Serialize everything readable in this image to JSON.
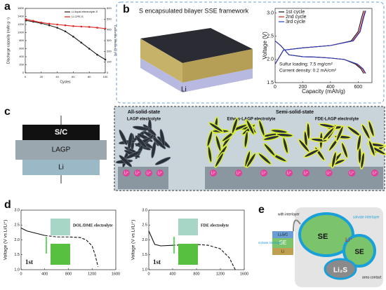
{
  "a": {
    "label": "a",
    "chart": {
      "type": "line",
      "x": [
        1,
        10,
        20,
        30,
        40,
        50,
        60,
        70,
        80,
        90,
        100
      ],
      "xlim": [
        0,
        100
      ],
      "xticks": [
        0,
        20,
        40,
        60,
        80,
        100
      ],
      "ylim": [
        0,
        1600
      ],
      "yticks": [
        0,
        200,
        400,
        600,
        800,
        1000,
        1200,
        1400,
        1600
      ],
      "y2lim": [
        0,
        600
      ],
      "y2ticks": [
        0,
        100,
        200,
        300,
        400,
        500,
        600
      ],
      "xlabel": "Cycles",
      "ylabel": "Discharge capacity (mAh g⁻¹)",
      "y2label": "Coulombic efficiency (%)",
      "markers": true,
      "legend": "upper right",
      "series": [
        {
          "name": "Li-liquid electrolyte-S",
          "color": "#222222",
          "values": [
            1300,
            1270,
            1230,
            1180,
            1120,
            1030,
            900,
            750,
            600,
            450,
            330
          ]
        },
        {
          "name": "Li-CPE-S",
          "color": "#e02020",
          "values": [
            1330,
            1290,
            1250,
            1220,
            1200,
            1180,
            1160,
            1150,
            1140,
            1120,
            1100
          ]
        }
      ]
    }
  },
  "b": {
    "label": "b",
    "framework_label": "S encapsulated bilayer SSE framework",
    "li_label": "Li",
    "notes": [
      "Sulfur loading: 7.5 mg/cm²",
      "Current density: 0.2 mA/cm²"
    ],
    "chart": {
      "type": "line",
      "xlim": [
        0,
        700
      ],
      "xticks": [
        0,
        200,
        400,
        600
      ],
      "ylim": [
        1.5,
        3.1
      ],
      "yticks": [
        1.5,
        {
          "value": 2,
          "label": "2.0"
        },
        2.5,
        {
          "value": 3,
          "label": "3.0"
        }
      ],
      "xlabel": "Capacity (mAh/g)",
      "ylabel": "Voltage (V)",
      "legend": "upper left",
      "series": [
        {
          "name": "1st cycle",
          "color": "#111111",
          "x": [
            0,
            40,
            100,
            200,
            300,
            400,
            500,
            580,
            620,
            640,
            null,
            0,
            60,
            200,
            400,
            550,
            600,
            625,
            640
          ],
          "values": [
            2.4,
            2.3,
            2.1,
            2.06,
            2.05,
            2.03,
            2.0,
            1.9,
            1.8,
            1.7,
            null,
            1.9,
            2.2,
            2.25,
            2.3,
            2.4,
            2.6,
            2.9,
            3.05
          ]
        },
        {
          "name": "2nd cycle",
          "color": "#e02020",
          "x": [
            0,
            40,
            100,
            200,
            300,
            400,
            500,
            590,
            630,
            650,
            null,
            0,
            60,
            200,
            400,
            560,
            610,
            635,
            650
          ],
          "values": [
            2.4,
            2.3,
            2.1,
            2.06,
            2.05,
            2.03,
            2.0,
            1.9,
            1.8,
            1.7,
            null,
            1.9,
            2.2,
            2.25,
            2.3,
            2.4,
            2.6,
            2.9,
            3.05
          ]
        },
        {
          "name": "3rd cycle",
          "color": "#2040c0",
          "x": [
            0,
            40,
            100,
            200,
            300,
            400,
            500,
            595,
            635,
            655,
            null,
            0,
            60,
            200,
            400,
            565,
            615,
            640,
            655
          ],
          "values": [
            2.4,
            2.3,
            2.1,
            2.06,
            2.05,
            2.03,
            2.0,
            1.9,
            1.8,
            1.7,
            null,
            1.9,
            2.2,
            2.25,
            2.3,
            2.4,
            2.6,
            2.9,
            3.05
          ]
        }
      ]
    }
  },
  "c": {
    "label": "c",
    "stack": [
      "S/C",
      "LAGP",
      "Li"
    ],
    "group_titles": [
      "All-solid-state",
      "Semi-solid-state"
    ],
    "subtitles": [
      "LAGP electrolyte",
      "Ethers-LAGP electrolyte",
      "FDE-LAGP electrolyte"
    ],
    "ion_label": "Li⁺"
  },
  "d": {
    "label": "d",
    "charts": [
      {
        "type": "line",
        "xlim": [
          0,
          1600
        ],
        "xticks": [
          0,
          400,
          800,
          1200,
          1600
        ],
        "ylim": [
          1,
          3
        ],
        "yticks": [
          {
            "value": 1,
            "label": "1.0"
          },
          1.5,
          {
            "value": 2,
            "label": "2.0"
          },
          2.5,
          {
            "value": 3,
            "label": "3.0"
          }
        ],
        "ylabel": "Voltage (V vs.Li/Li⁺)",
        "annotation": "DOL/DME electrolyte",
        "cycle_label": "1st",
        "series": [
          {
            "style": "solid",
            "color": "#111111",
            "x": [
              0,
              100,
              300,
              400
            ],
            "values": [
              2.4,
              2.3,
              2.2,
              2.15
            ]
          },
          {
            "style": "dashed",
            "color": "#111111",
            "x": [
              400,
              600,
              800,
              1000,
              1100,
              1200,
              1250,
              1300
            ],
            "values": [
              2.15,
              2.1,
              2.1,
              2.08,
              2.0,
              1.8,
              1.5,
              1.1
            ]
          }
        ]
      },
      {
        "type": "line",
        "xlim": [
          0,
          1600
        ],
        "xticks": [
          0,
          400,
          800,
          1200,
          1600
        ],
        "ylim": [
          1,
          3
        ],
        "yticks": [
          {
            "value": 1,
            "label": "1.0"
          },
          1.5,
          {
            "value": 2,
            "label": "2.0"
          },
          2.5,
          {
            "value": 3,
            "label": "3.0"
          }
        ],
        "ylabel": "Voltage (V vs.Li/Li⁺)",
        "annotation": "FDE electrolyte",
        "cycle_label": "1st",
        "series": [
          {
            "style": "solid",
            "color": "#111111",
            "x": [
              0,
              100,
              200,
              400
            ],
            "values": [
              2.3,
              1.85,
              1.8,
              1.82
            ]
          },
          {
            "style": "dashed",
            "color": "#111111",
            "x": [
              400,
              800,
              1000,
              1200,
              1350,
              1450
            ],
            "values": [
              1.82,
              1.85,
              1.82,
              1.7,
              1.4,
              1.0
            ]
          }
        ]
      }
    ]
  },
  "e": {
    "label": "e",
    "with_interlayer": "with interlayer",
    "se": "SE",
    "ion": "Li⁺",
    "li2s": "Li₂S",
    "solvate_interlayer": "solvate interlayer",
    "area_contact": "area contact",
    "stack": [
      "Li₂S/C",
      "SE",
      "Li"
    ]
  }
}
